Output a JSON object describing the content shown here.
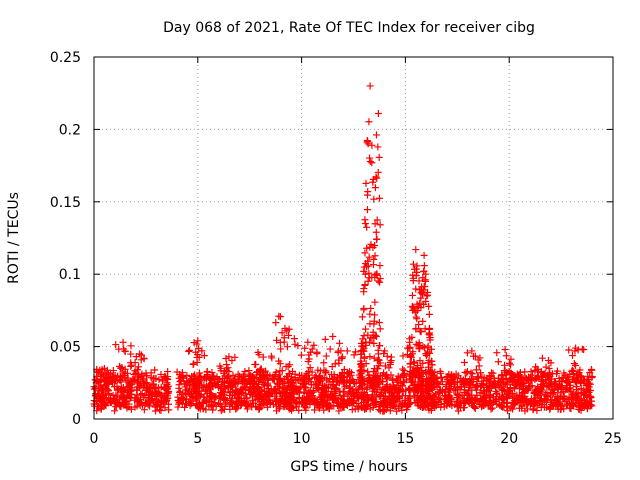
{
  "chart_data": {
    "type": "scatter",
    "title": "Day 068 of 2021, Rate Of TEC Index for receiver cibg",
    "xlabel": "GPS time / hours",
    "ylabel": "ROTI / TECUs",
    "xlim": [
      0,
      25
    ],
    "ylim": [
      0,
      0.25
    ],
    "x_ticks": [
      "0",
      "5",
      "10",
      "15",
      "20",
      "25"
    ],
    "y_ticks": [
      "0",
      "0.05",
      "0.1",
      "0.15",
      "0.2",
      "0.25"
    ],
    "grid": true,
    "marker": "+",
    "marker_color": "#ff0000",
    "gaps": [
      [
        3.6,
        4.0
      ]
    ],
    "baseline": {
      "x_range": [
        0,
        24
      ],
      "typical_y_range": [
        0.005,
        0.035
      ],
      "typical_peaks": [
        {
          "x": 0.5,
          "y": 0.035
        },
        {
          "x": 1.4,
          "y": 0.053
        },
        {
          "x": 2.2,
          "y": 0.045
        },
        {
          "x": 5.0,
          "y": 0.054
        },
        {
          "x": 6.5,
          "y": 0.043
        },
        {
          "x": 7.9,
          "y": 0.046
        },
        {
          "x": 8.9,
          "y": 0.071
        },
        {
          "x": 9.4,
          "y": 0.062
        },
        {
          "x": 10.3,
          "y": 0.053
        },
        {
          "x": 11.5,
          "y": 0.057
        },
        {
          "x": 12.2,
          "y": 0.047
        },
        {
          "x": 14.0,
          "y": 0.047
        },
        {
          "x": 15.1,
          "y": 0.049
        },
        {
          "x": 18.2,
          "y": 0.047
        },
        {
          "x": 19.8,
          "y": 0.048
        },
        {
          "x": 21.6,
          "y": 0.042
        },
        {
          "x": 23.2,
          "y": 0.049
        }
      ]
    },
    "events": [
      {
        "x_range": [
          12.8,
          13.8
        ],
        "peak": {
          "x": 13.3,
          "y": 0.23
        },
        "secondary_peak": {
          "x": 13.7,
          "y": 0.211
        }
      },
      {
        "x_range": [
          15.2,
          16.3
        ],
        "peak": {
          "x": 15.5,
          "y": 0.117
        },
        "secondary_peak": {
          "x": 15.9,
          "y": 0.113
        }
      }
    ]
  }
}
